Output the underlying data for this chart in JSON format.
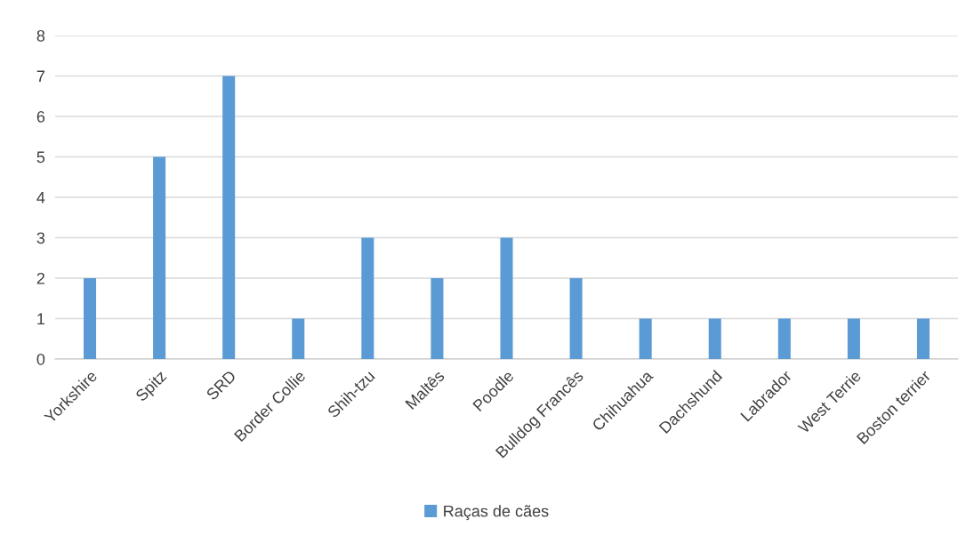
{
  "chart_data": {
    "type": "bar",
    "categories": [
      "Yorkshire",
      "Spitz",
      "SRD",
      "Border Collie",
      "Shih-tzu",
      "Maltês",
      "Poodle",
      "Bulldog Francês",
      "Chihuahua",
      "Dachshund",
      "Labrador",
      "West Terrie",
      "Boston terrier"
    ],
    "series": [
      {
        "name": "Raças de cães",
        "color": "#5b9bd5",
        "values": [
          2,
          5,
          7,
          1,
          3,
          2,
          3,
          2,
          1,
          1,
          1,
          1,
          1
        ]
      }
    ],
    "ylim": [
      0,
      8
    ],
    "yticks": [
      0,
      1,
      2,
      3,
      4,
      5,
      6,
      7,
      8
    ],
    "grid": "y",
    "legend": "bottom"
  }
}
